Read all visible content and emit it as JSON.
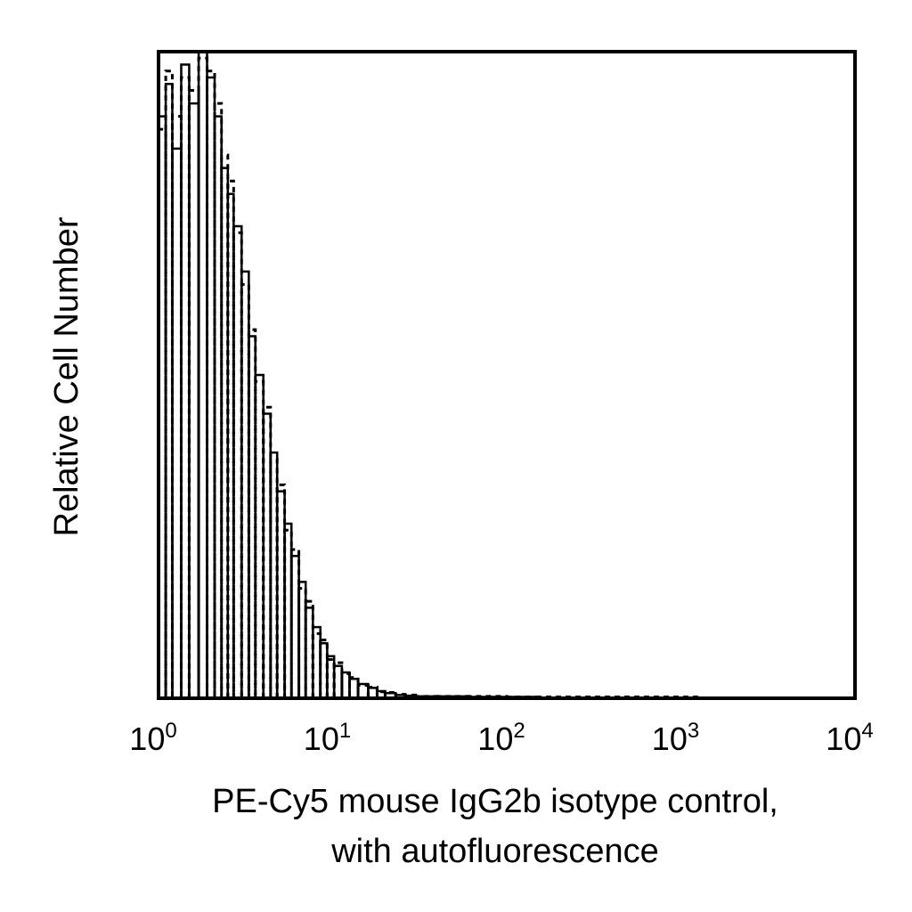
{
  "chart_data": {
    "type": "histogram",
    "title": "",
    "ylabel": "Relative Cell Number",
    "xlabel_lines": [
      "PE-Cy5 mouse IgG2b isotype control,",
      "with autofluorescence"
    ],
    "x_scale": "log",
    "xlim": [
      1,
      10000
    ],
    "ylim": [
      0,
      100
    ],
    "x_ticks": [
      {
        "base": "10",
        "exp": "0",
        "value": 1
      },
      {
        "base": "10",
        "exp": "1",
        "value": 10
      },
      {
        "base": "10",
        "exp": "2",
        "value": 100
      },
      {
        "base": "10",
        "exp": "3",
        "value": 1000
      },
      {
        "base": "10",
        "exp": "4",
        "value": 10000
      }
    ],
    "grid": false,
    "series": [
      {
        "style": "solid",
        "x": [
          1.0,
          1.1,
          1.2,
          1.35,
          1.5,
          1.7,
          1.9,
          2.1,
          2.3,
          2.5,
          2.7,
          3.0,
          3.3,
          3.6,
          4.0,
          4.4,
          4.8,
          5.3,
          5.8,
          6.4,
          7.0,
          7.7,
          8.5,
          9.3,
          10.2,
          11.3,
          12.5,
          14,
          16,
          18,
          20,
          23,
          26,
          30,
          40,
          60,
          100,
          150
        ],
        "y": [
          90,
          95,
          85,
          98,
          92,
          100,
          96,
          90,
          82,
          78,
          73,
          66,
          56,
          50,
          44,
          38,
          32,
          27,
          22,
          18,
          14,
          11,
          8.5,
          6.5,
          5,
          4,
          3,
          2.2,
          1.6,
          1.1,
          0.8,
          0.5,
          0.4,
          0.3,
          0.3,
          0.2,
          0.2,
          0.1
        ]
      },
      {
        "style": "dashed",
        "x": [
          1.0,
          1.1,
          1.2,
          1.35,
          1.5,
          1.7,
          1.9,
          2.1,
          2.3,
          2.5,
          2.7,
          3.0,
          3.3,
          3.6,
          4.0,
          4.4,
          4.8,
          5.3,
          5.8,
          6.4,
          7.0,
          7.7,
          8.5,
          9.3,
          10.2,
          11.3,
          12.5,
          14,
          16,
          18,
          20,
          23,
          26,
          30,
          40,
          60,
          100,
          150,
          1300
        ],
        "y": [
          88,
          97,
          90,
          96,
          94,
          99,
          97,
          92,
          84,
          80,
          72,
          64,
          57,
          49,
          45,
          37,
          33,
          26,
          23,
          17,
          15,
          10,
          9,
          6,
          5.5,
          3.8,
          3.2,
          2.0,
          1.7,
          1.0,
          0.9,
          0.6,
          0.5,
          0.3,
          0.3,
          0.3,
          0.2,
          0.2,
          0.2
        ]
      }
    ]
  }
}
